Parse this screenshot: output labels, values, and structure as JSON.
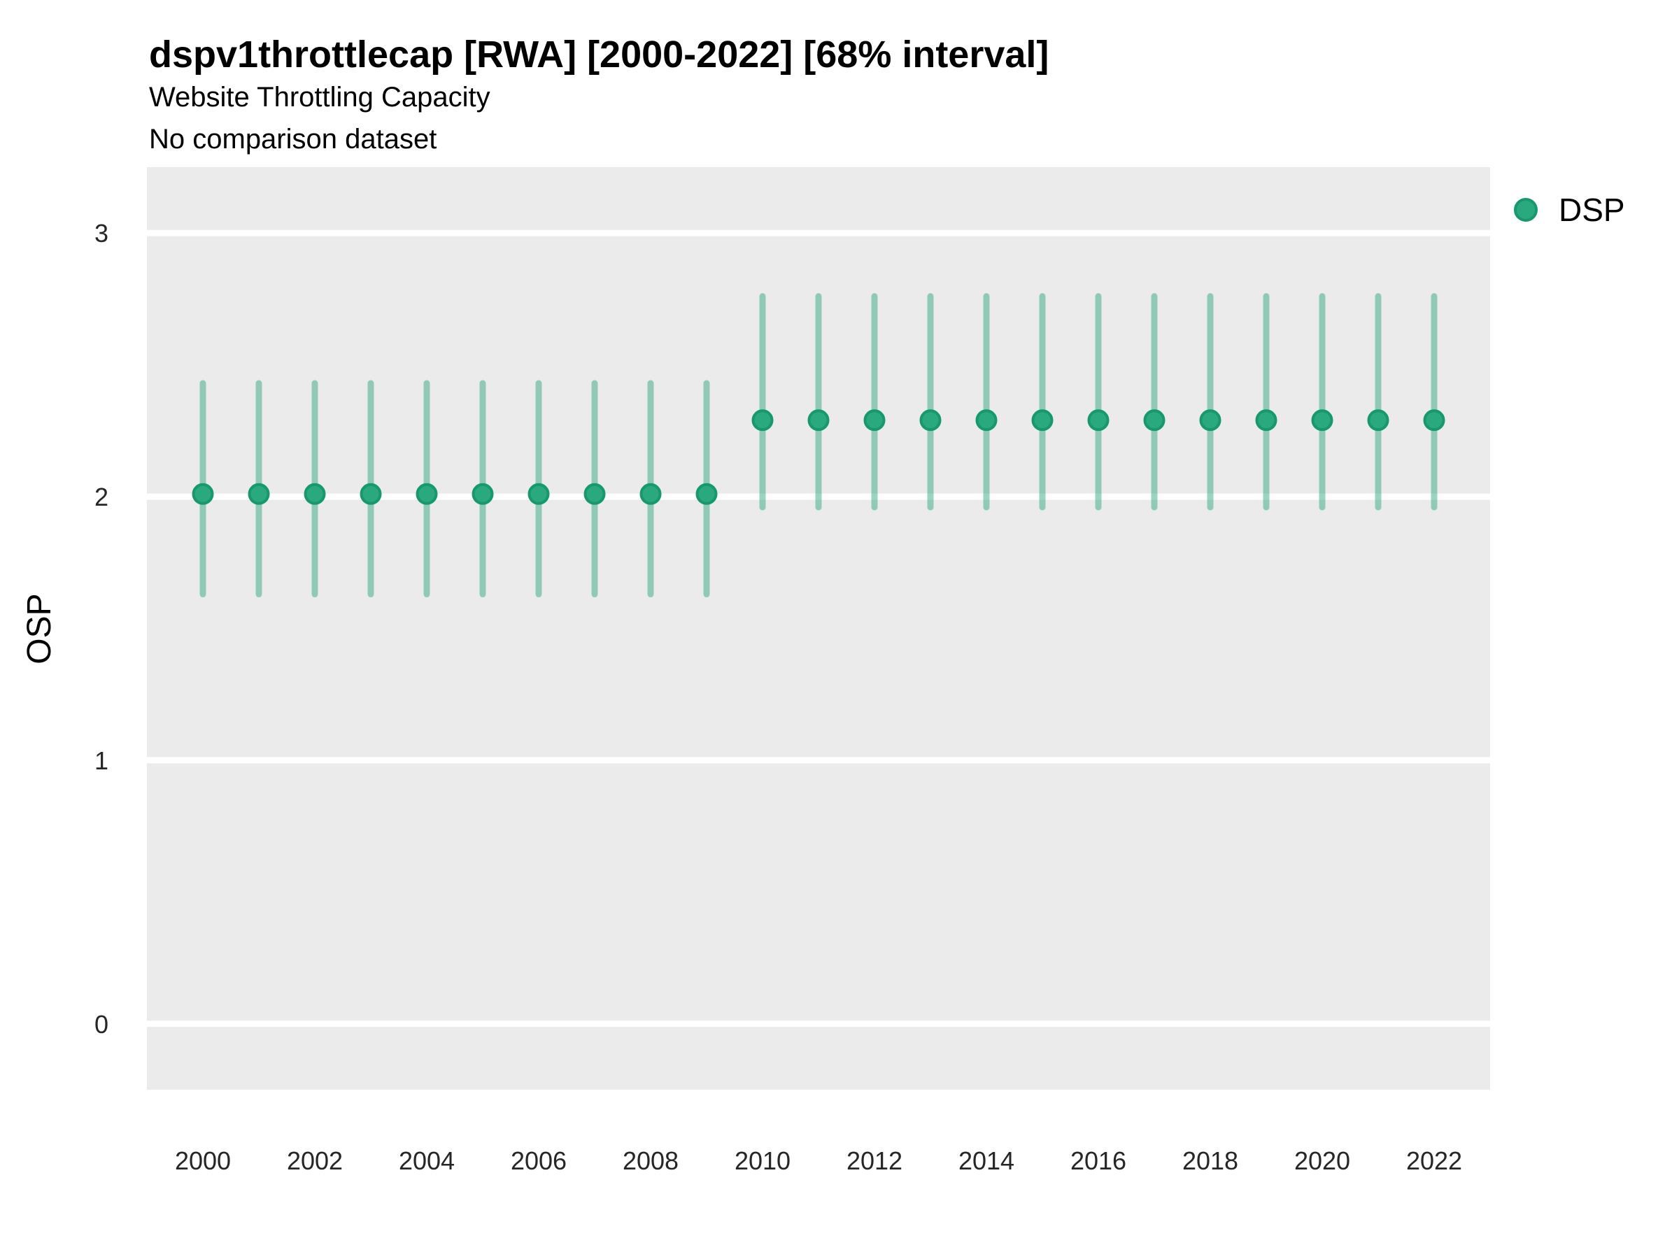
{
  "header": {
    "title": "dspv1throttlecap [RWA] [2000-2022] [68% interval]",
    "subtitle": "Website Throttling Capacity",
    "note": "No comparison dataset"
  },
  "legend": {
    "label": "DSP",
    "position": "right"
  },
  "colors": {
    "point": "#2aa87e",
    "point_stroke": "#17996b",
    "interval_base": "#21a277",
    "interval_opacity": 0.45,
    "panel_bg": "#ebebeb",
    "gridline": "#ffffff",
    "tick_text": "#262626",
    "title_text": "#000000"
  },
  "chart_data": {
    "type": "pointrange",
    "title": "dspv1throttlecap [RWA] [2000-2022] [68% interval]",
    "subtitle": "Website Throttling Capacity",
    "note": "No comparison dataset",
    "xlabel": "",
    "ylabel": "OSP",
    "interval_label": "68% interval",
    "legend_entries": [
      "DSP"
    ],
    "legend_position": "right",
    "grid": "major-y-only",
    "xlim": [
      1999,
      2023
    ],
    "ylim": [
      -0.25,
      3.25
    ],
    "x_ticks": [
      2000,
      2002,
      2004,
      2006,
      2008,
      2010,
      2012,
      2014,
      2016,
      2018,
      2020,
      2022
    ],
    "y_ticks": [
      0,
      1,
      2,
      3
    ],
    "series": [
      {
        "name": "DSP",
        "points": [
          {
            "year": 2000,
            "value": 2.01,
            "low": 1.63,
            "high": 2.43
          },
          {
            "year": 2001,
            "value": 2.01,
            "low": 1.63,
            "high": 2.43
          },
          {
            "year": 2002,
            "value": 2.01,
            "low": 1.63,
            "high": 2.43
          },
          {
            "year": 2003,
            "value": 2.01,
            "low": 1.63,
            "high": 2.43
          },
          {
            "year": 2004,
            "value": 2.01,
            "low": 1.63,
            "high": 2.43
          },
          {
            "year": 2005,
            "value": 2.01,
            "low": 1.63,
            "high": 2.43
          },
          {
            "year": 2006,
            "value": 2.01,
            "low": 1.63,
            "high": 2.43
          },
          {
            "year": 2007,
            "value": 2.01,
            "low": 1.63,
            "high": 2.43
          },
          {
            "year": 2008,
            "value": 2.01,
            "low": 1.63,
            "high": 2.43
          },
          {
            "year": 2009,
            "value": 2.01,
            "low": 1.63,
            "high": 2.43
          },
          {
            "year": 2010,
            "value": 2.29,
            "low": 1.96,
            "high": 2.76
          },
          {
            "year": 2011,
            "value": 2.29,
            "low": 1.96,
            "high": 2.76
          },
          {
            "year": 2012,
            "value": 2.29,
            "low": 1.96,
            "high": 2.76
          },
          {
            "year": 2013,
            "value": 2.29,
            "low": 1.96,
            "high": 2.76
          },
          {
            "year": 2014,
            "value": 2.29,
            "low": 1.96,
            "high": 2.76
          },
          {
            "year": 2015,
            "value": 2.29,
            "low": 1.96,
            "high": 2.76
          },
          {
            "year": 2016,
            "value": 2.29,
            "low": 1.96,
            "high": 2.76
          },
          {
            "year": 2017,
            "value": 2.29,
            "low": 1.96,
            "high": 2.76
          },
          {
            "year": 2018,
            "value": 2.29,
            "low": 1.96,
            "high": 2.76
          },
          {
            "year": 2019,
            "value": 2.29,
            "low": 1.96,
            "high": 2.76
          },
          {
            "year": 2020,
            "value": 2.29,
            "low": 1.96,
            "high": 2.76
          },
          {
            "year": 2021,
            "value": 2.29,
            "low": 1.96,
            "high": 2.76
          },
          {
            "year": 2022,
            "value": 2.29,
            "low": 1.96,
            "high": 2.76
          }
        ]
      }
    ]
  }
}
